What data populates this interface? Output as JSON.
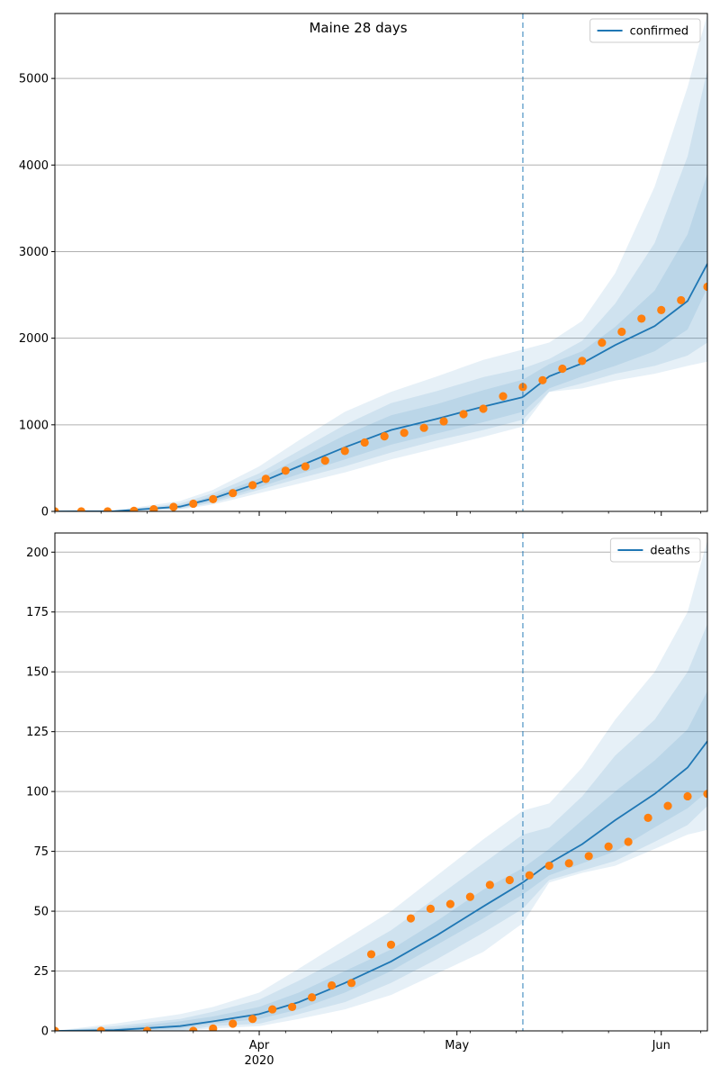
{
  "figure": {
    "title": "Maine 28 days",
    "colors": {
      "model_line": "#1f77b4",
      "band": "#1f77b4",
      "observed": "#ff7f0e",
      "grid": "#b0b0b0",
      "vline": "#1f77b4"
    }
  },
  "chart_data": [
    {
      "type": "line",
      "legend": {
        "label": "confirmed",
        "placement": "top-right"
      },
      "x_start": "2020-03-01",
      "x_end": "2020-06-08",
      "x_ticks": [
        {
          "date": "2020-04-01",
          "label": "Apr",
          "sublabel": "2020"
        },
        {
          "date": "2020-05-01",
          "label": "May",
          "sublabel": ""
        },
        {
          "date": "2020-06-01",
          "label": "Jun",
          "sublabel": ""
        }
      ],
      "forecast_start": "2020-05-11",
      "grid": "y",
      "ylim": [
        0,
        5750
      ],
      "y_ticks": [
        0,
        1000,
        2000,
        3000,
        4000,
        5000
      ],
      "model": {
        "dates": [
          "2020-03-01",
          "2020-03-10",
          "2020-03-20",
          "2020-03-25",
          "2020-04-01",
          "2020-04-07",
          "2020-04-14",
          "2020-04-21",
          "2020-04-28",
          "2020-05-05",
          "2020-05-11",
          "2020-05-15",
          "2020-05-20",
          "2020-05-25",
          "2020-05-31",
          "2020-06-05",
          "2020-06-08"
        ],
        "median": [
          0,
          2,
          55,
          150,
          330,
          520,
          740,
          940,
          1070,
          1210,
          1320,
          1560,
          1710,
          1920,
          2140,
          2430,
          2860
        ],
        "band1_low": [
          0,
          1,
          40,
          120,
          280,
          430,
          600,
          770,
          900,
          1030,
          1150,
          1420,
          1560,
          1680,
          1850,
          2100,
          2580
        ],
        "band1_high": [
          0,
          3,
          70,
          180,
          380,
          610,
          880,
          1110,
          1240,
          1400,
          1520,
          1700,
          1850,
          2130,
          2550,
          3200,
          3900
        ],
        "band2_low": [
          0,
          0,
          30,
          100,
          250,
          380,
          520,
          680,
          820,
          940,
          1060,
          1380,
          1480,
          1590,
          1680,
          1800,
          1950
        ],
        "band2_high": [
          0,
          5,
          90,
          210,
          440,
          700,
          1000,
          1250,
          1390,
          1550,
          1650,
          1760,
          1970,
          2400,
          3100,
          4100,
          5100
        ],
        "band3_low": [
          0,
          0,
          20,
          80,
          210,
          320,
          450,
          600,
          730,
          860,
          980,
          1380,
          1420,
          1510,
          1590,
          1680,
          1730
        ],
        "band3_high": [
          0,
          10,
          120,
          250,
          520,
          820,
          1150,
          1380,
          1560,
          1750,
          1870,
          1950,
          2200,
          2750,
          3750,
          4900,
          5750
        ]
      },
      "observed": [
        [
          "2020-03-01",
          0
        ],
        [
          "2020-03-05",
          0
        ],
        [
          "2020-03-09",
          0
        ],
        [
          "2020-03-13",
          7
        ],
        [
          "2020-03-16",
          25
        ],
        [
          "2020-03-19",
          52
        ],
        [
          "2020-03-22",
          89
        ],
        [
          "2020-03-25",
          142
        ],
        [
          "2020-03-28",
          211
        ],
        [
          "2020-03-31",
          303
        ],
        [
          "2020-04-02",
          376
        ],
        [
          "2020-04-05",
          470
        ],
        [
          "2020-04-08",
          519
        ],
        [
          "2020-04-11",
          586
        ],
        [
          "2020-04-14",
          698
        ],
        [
          "2020-04-17",
          796
        ],
        [
          "2020-04-20",
          867
        ],
        [
          "2020-04-23",
          907
        ],
        [
          "2020-04-26",
          965
        ],
        [
          "2020-04-29",
          1040
        ],
        [
          "2020-05-02",
          1123
        ],
        [
          "2020-05-05",
          1185
        ],
        [
          "2020-05-08",
          1330
        ],
        [
          "2020-05-11",
          1436
        ],
        [
          "2020-05-14",
          1515
        ],
        [
          "2020-05-17",
          1648
        ],
        [
          "2020-05-20",
          1738
        ],
        [
          "2020-05-23",
          1948
        ],
        [
          "2020-05-26",
          2074
        ],
        [
          "2020-05-29",
          2226
        ],
        [
          "2020-06-01",
          2325
        ],
        [
          "2020-06-04",
          2439
        ],
        [
          "2020-06-08",
          2594
        ]
      ]
    },
    {
      "type": "line",
      "legend": {
        "label": "deaths",
        "placement": "top-right"
      },
      "x_start": "2020-03-01",
      "x_end": "2020-06-08",
      "x_ticks": [
        {
          "date": "2020-04-01",
          "label": "Apr",
          "sublabel": "2020"
        },
        {
          "date": "2020-05-01",
          "label": "May",
          "sublabel": ""
        },
        {
          "date": "2020-06-01",
          "label": "Jun",
          "sublabel": ""
        }
      ],
      "forecast_start": "2020-05-11",
      "grid": "y",
      "ylim": [
        0,
        208
      ],
      "y_ticks": [
        0,
        25,
        50,
        75,
        100,
        125,
        150,
        175,
        200
      ],
      "model": {
        "dates": [
          "2020-03-01",
          "2020-03-10",
          "2020-03-20",
          "2020-03-25",
          "2020-04-01",
          "2020-04-07",
          "2020-04-14",
          "2020-04-21",
          "2020-04-28",
          "2020-05-05",
          "2020-05-11",
          "2020-05-15",
          "2020-05-20",
          "2020-05-25",
          "2020-05-31",
          "2020-06-05",
          "2020-06-08"
        ],
        "median": [
          0,
          0.3,
          2,
          4,
          7,
          12,
          20,
          29,
          40,
          52,
          62,
          70,
          78,
          88,
          99,
          110,
          121
        ],
        "band1_low": [
          0,
          0,
          1,
          3,
          5,
          9,
          16,
          25,
          36,
          47,
          57,
          65,
          70,
          75,
          85,
          93,
          100
        ],
        "band1_high": [
          0,
          1,
          4,
          6,
          10,
          16,
          25,
          34,
          46,
          59,
          68,
          76,
          88,
          100,
          113,
          126,
          142
        ],
        "band2_low": [
          0,
          0,
          0,
          2,
          3,
          7,
          12,
          20,
          30,
          41,
          51,
          63,
          67,
          71,
          79,
          86,
          94
        ],
        "band2_high": [
          0,
          2,
          5,
          8,
          13,
          21,
          31,
          42,
          56,
          70,
          82,
          85,
          98,
          115,
          130,
          150,
          170
        ],
        "band3_low": [
          0,
          0,
          0,
          1,
          2,
          5,
          9,
          15,
          24,
          33,
          45,
          62,
          66,
          69,
          76,
          82,
          84
        ],
        "band3_high": [
          0,
          3,
          7,
          10,
          16,
          26,
          38,
          50,
          65,
          80,
          92,
          95,
          110,
          130,
          150,
          175,
          205
        ]
      },
      "observed": [
        [
          "2020-03-01",
          0
        ],
        [
          "2020-03-08",
          0
        ],
        [
          "2020-03-15",
          0
        ],
        [
          "2020-03-22",
          0
        ],
        [
          "2020-03-25",
          1
        ],
        [
          "2020-03-28",
          3
        ],
        [
          "2020-03-31",
          5
        ],
        [
          "2020-04-03",
          9
        ],
        [
          "2020-04-06",
          10
        ],
        [
          "2020-04-09",
          14
        ],
        [
          "2020-04-12",
          19
        ],
        [
          "2020-04-15",
          20
        ],
        [
          "2020-04-18",
          32
        ],
        [
          "2020-04-21",
          36
        ],
        [
          "2020-04-24",
          47
        ],
        [
          "2020-04-27",
          51
        ],
        [
          "2020-04-30",
          53
        ],
        [
          "2020-05-03",
          56
        ],
        [
          "2020-05-06",
          61
        ],
        [
          "2020-05-09",
          63
        ],
        [
          "2020-05-12",
          65
        ],
        [
          "2020-05-15",
          69
        ],
        [
          "2020-05-18",
          70
        ],
        [
          "2020-05-21",
          73
        ],
        [
          "2020-05-24",
          77
        ],
        [
          "2020-05-27",
          79
        ],
        [
          "2020-05-30",
          89
        ],
        [
          "2020-06-02",
          94
        ],
        [
          "2020-06-05",
          98
        ],
        [
          "2020-06-08",
          99
        ]
      ]
    }
  ]
}
